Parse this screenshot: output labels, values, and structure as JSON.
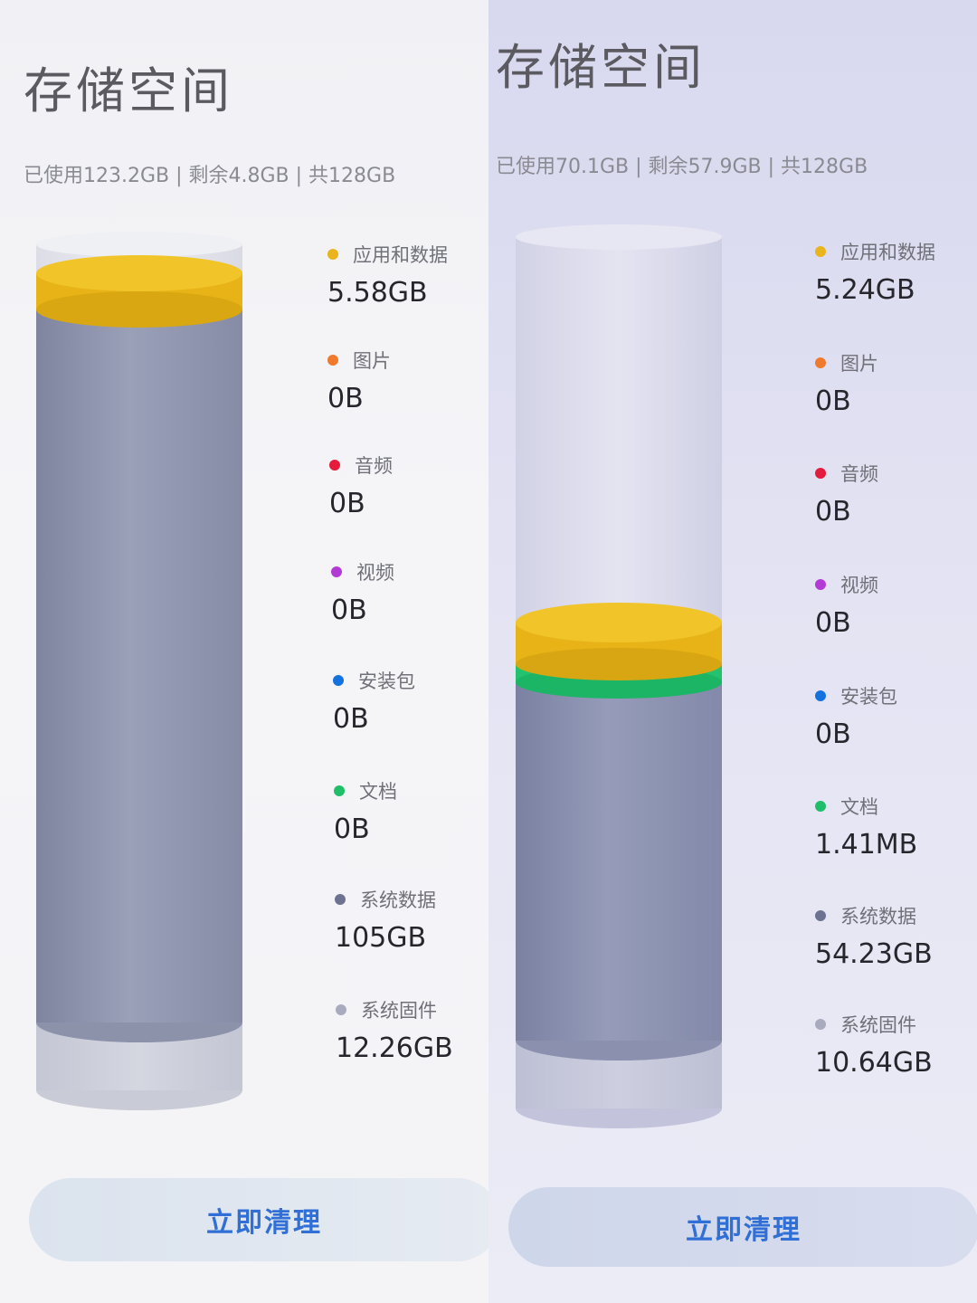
{
  "screens": [
    {
      "title": "存储空间",
      "summary": "已使用123.2GB | 剩余4.8GB | 共128GB",
      "categories": [
        {
          "label": "应用和数据",
          "value": "5.58GB",
          "color": "#e9b41c"
        },
        {
          "label": "图片",
          "value": "0B",
          "color": "#ef7a2c"
        },
        {
          "label": "音频",
          "value": "0B",
          "color": "#e51b3c"
        },
        {
          "label": "视频",
          "value": "0B",
          "color": "#b43ad6"
        },
        {
          "label": "安装包",
          "value": "0B",
          "color": "#1570e0"
        },
        {
          "label": "文档",
          "value": "0B",
          "color": "#1fbf6a"
        },
        {
          "label": "系统数据",
          "value": "105GB",
          "color": "#6c7290"
        },
        {
          "label": "系统固件",
          "value": "12.26GB",
          "color": "#a7abbd"
        }
      ],
      "clean_button": "立即清理"
    },
    {
      "title": "存储空间",
      "summary": "已使用70.1GB | 剩余57.9GB | 共128GB",
      "categories": [
        {
          "label": "应用和数据",
          "value": "5.24GB",
          "color": "#e9b41c"
        },
        {
          "label": "图片",
          "value": "0B",
          "color": "#ef7a2c"
        },
        {
          "label": "音频",
          "value": "0B",
          "color": "#e51b3c"
        },
        {
          "label": "视频",
          "value": "0B",
          "color": "#b43ad6"
        },
        {
          "label": "安装包",
          "value": "0B",
          "color": "#1570e0"
        },
        {
          "label": "文档",
          "value": "1.41MB",
          "color": "#1fbf6a"
        },
        {
          "label": "系统数据",
          "value": "54.23GB",
          "color": "#6c7290"
        },
        {
          "label": "系统固件",
          "value": "10.64GB",
          "color": "#a7abbd"
        }
      ],
      "clean_button": "立即清理"
    }
  ]
}
